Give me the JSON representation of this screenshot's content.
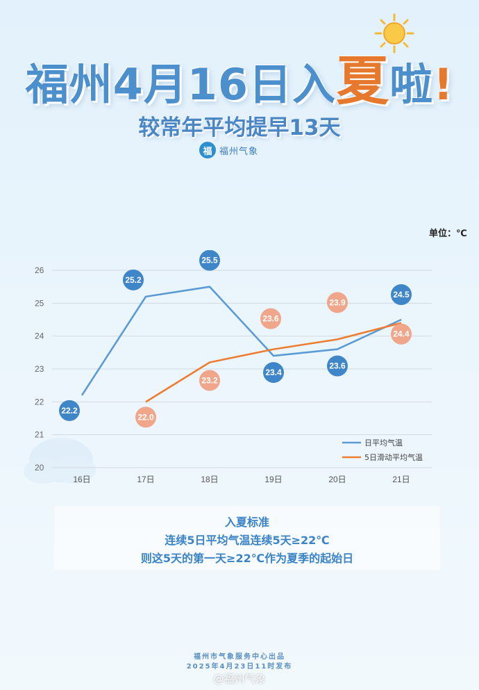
{
  "header": {
    "title_pre": "福州4月16日入",
    "title_hl": "夏",
    "title_post": "啦",
    "title_ex": "!",
    "subtitle": "较常年平均提早13天",
    "brand_logo": "福",
    "brand_name": "福州气象"
  },
  "unit_label": "单位：℃",
  "chart_data": {
    "type": "line",
    "categories": [
      "16日",
      "17日",
      "18日",
      "19日",
      "20日",
      "21日"
    ],
    "y_ticks": [
      20,
      21,
      22,
      23,
      24,
      25,
      26
    ],
    "ylim": [
      20,
      26
    ],
    "grid": true,
    "legend_position": "bottom-right",
    "series": [
      {
        "name": "日平均气温",
        "color": "#5b9bd5",
        "values": [
          22.2,
          25.2,
          25.5,
          23.4,
          23.6,
          24.5
        ],
        "labels": [
          "22.2",
          "25.2",
          "25.5",
          "23.4",
          "23.6",
          "24.5"
        ]
      },
      {
        "name": "5日滑动平均气温",
        "color": "#ed7d31",
        "values": [
          null,
          22.0,
          23.2,
          23.6,
          23.9,
          24.4
        ],
        "labels": [
          "",
          "22.0",
          "23.2",
          "23.6",
          "23.9",
          "24.4"
        ]
      }
    ]
  },
  "criteria": {
    "title": "入夏标准",
    "line1": "连续5日平均气温连续5天≥22℃",
    "line2": "则这5天的第一天≥22℃作为夏季的起始日"
  },
  "footer": {
    "line1": "福州市气象服务中心出品",
    "line2": "2025年4月23日11时发布"
  },
  "watermark": "@福州气象"
}
